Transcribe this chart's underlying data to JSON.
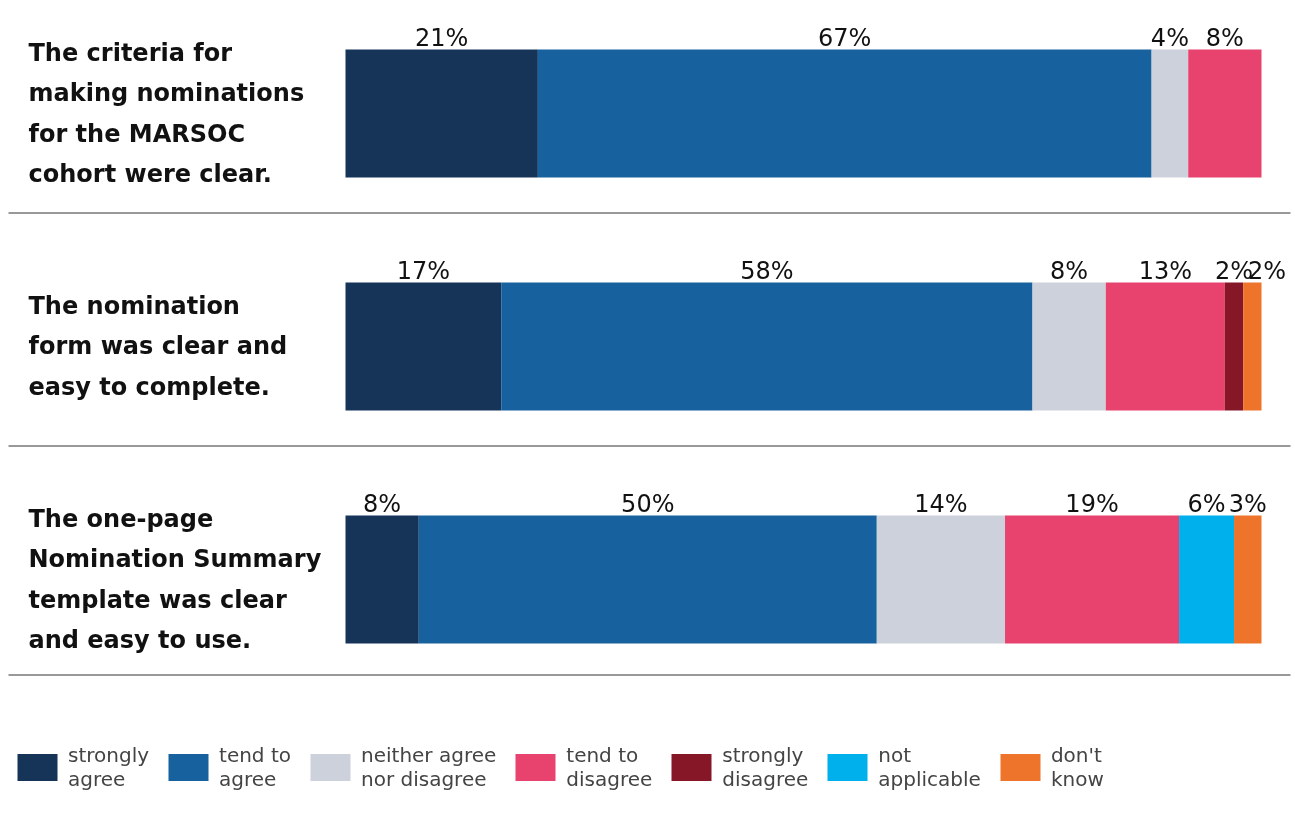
{
  "chart_data": {
    "type": "bar",
    "orientation": "horizontal",
    "stacked": true,
    "legend": "bottom",
    "categories": [
      "The criteria for making nominations for the MARSOC cohort were clear.",
      "The nomination form was clear and easy to complete.",
      "The one-page Nomination Summary template was clear and easy to use."
    ],
    "series": [
      {
        "name": "strongly agree",
        "color": "#163358",
        "values": [
          21,
          17,
          8
        ],
        "value_labels": [
          "21%",
          "17%",
          "8%"
        ]
      },
      {
        "name": "tend to agree",
        "color": "#17629e",
        "values": [
          67,
          58,
          50
        ],
        "value_labels": [
          "67%",
          "58%",
          "50%"
        ]
      },
      {
        "name": "neither agree nor disagree",
        "color": "#cdd1dc",
        "values": [
          4,
          8,
          14
        ],
        "value_labels": [
          "4%",
          "8%",
          "14%"
        ]
      },
      {
        "name": "tend to disagree",
        "color": "#e8436e",
        "values": [
          8,
          13,
          19
        ],
        "value_labels": [
          "8%",
          "13%",
          "19%"
        ]
      },
      {
        "name": "strongly disagree",
        "color": "#861727",
        "values": [
          null,
          2,
          null
        ],
        "value_labels": [
          null,
          "2%",
          null
        ]
      },
      {
        "name": "not applicable",
        "color": "#00b0ed",
        "values": [
          null,
          null,
          6
        ],
        "value_labels": [
          null,
          null,
          "6%"
        ]
      },
      {
        "name": "don't know",
        "color": "#ee742c",
        "values": [
          null,
          2,
          3
        ],
        "value_labels": [
          null,
          "2%",
          "3%"
        ]
      }
    ]
  }
}
